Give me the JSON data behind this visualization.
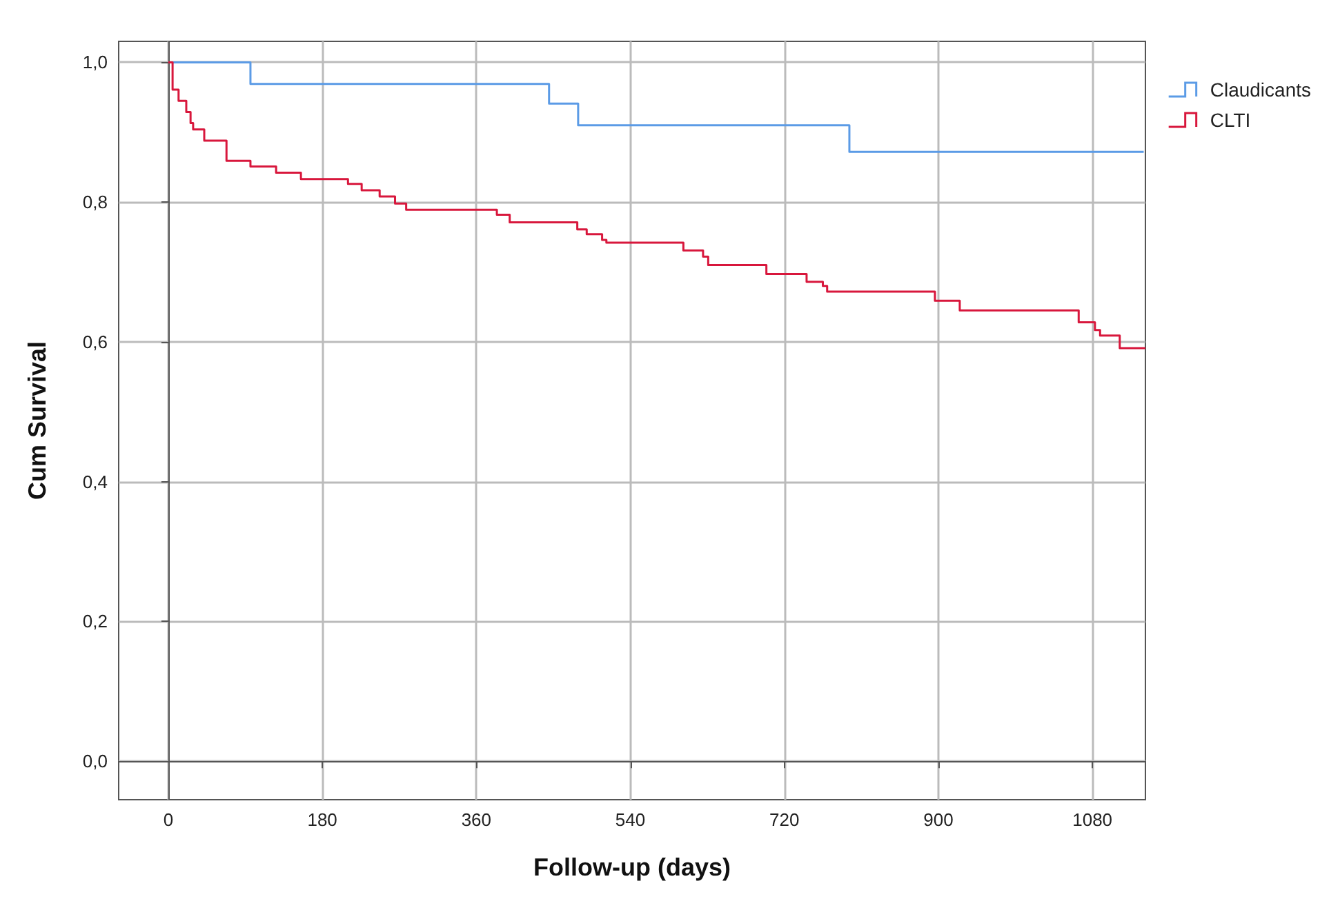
{
  "chart_data": {
    "type": "step",
    "xlabel": "Follow-up (days)",
    "ylabel": "Cum Survival",
    "xlim": [
      -58,
      1142
    ],
    "xticks": [
      0,
      180,
      360,
      540,
      720,
      900,
      1080
    ],
    "ylim": [
      -0.055,
      1.03
    ],
    "yticks": [
      {
        "value": 0,
        "label": "0,0"
      },
      {
        "value": 0.2,
        "label": "0,2"
      },
      {
        "value": 0.4,
        "label": "0,4"
      },
      {
        "value": 0.6,
        "label": "0,6"
      },
      {
        "value": 0.8,
        "label": "0,8"
      },
      {
        "value": 1,
        "label": "1,0"
      }
    ],
    "grid": true,
    "legend": "top right",
    "marker": "none",
    "line_style": "solid",
    "series": [
      {
        "name": "Claudicants",
        "color": "#5b9be6",
        "x": [
          0,
          96,
          445,
          479,
          796,
          1140
        ],
        "values": [
          1.0,
          0.969,
          0.941,
          0.91,
          0.872,
          0.872
        ]
      },
      {
        "name": "CLTI",
        "color": "#d8173c",
        "x": [
          0,
          5,
          12,
          21,
          26,
          29,
          42,
          68,
          96,
          126,
          155,
          210,
          226,
          247,
          265,
          278,
          384,
          399,
          478,
          489,
          507,
          512,
          602,
          625,
          631,
          699,
          746,
          765,
          770,
          896,
          925,
          1064,
          1083,
          1089,
          1112,
          1142
        ],
        "values": [
          1.0,
          0.961,
          0.945,
          0.929,
          0.913,
          0.904,
          0.888,
          0.859,
          0.851,
          0.842,
          0.833,
          0.826,
          0.817,
          0.808,
          0.798,
          0.789,
          0.782,
          0.771,
          0.761,
          0.754,
          0.746,
          0.742,
          0.731,
          0.722,
          0.71,
          0.697,
          0.686,
          0.68,
          0.672,
          0.659,
          0.645,
          0.628,
          0.617,
          0.609,
          0.591,
          0.591
        ]
      }
    ]
  }
}
